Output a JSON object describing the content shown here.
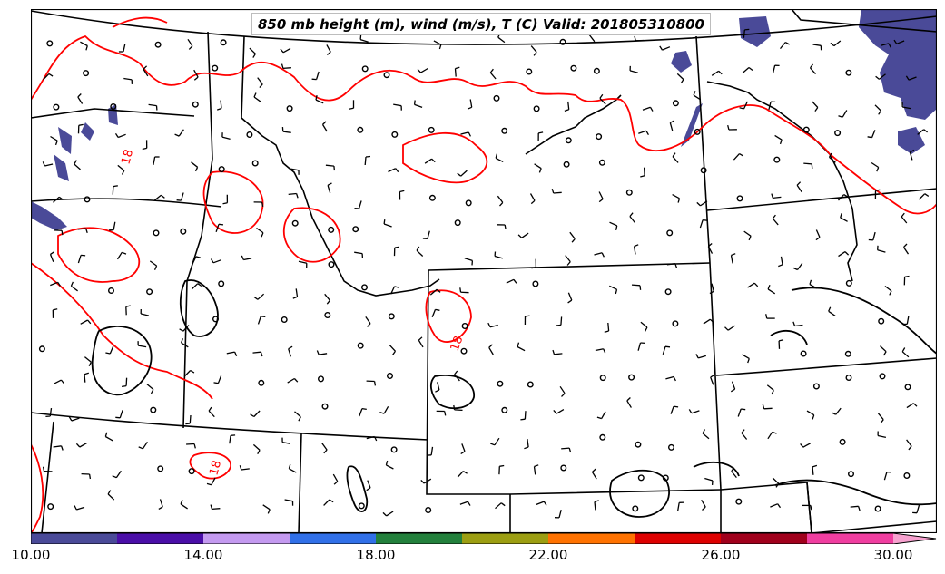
{
  "title": "850 mb height (m), wind (m/s), T (C) Valid: 201805310800",
  "colorbar": {
    "min": 10,
    "max": 30,
    "bin_edges": [
      10,
      12,
      14,
      16,
      18,
      20,
      22,
      24,
      26,
      28,
      30
    ],
    "colors": [
      "#4a4a98",
      "#4a0ea8",
      "#c49af0",
      "#3170e8",
      "#23803c",
      "#9c9e12",
      "#ff7200",
      "#dd0000",
      "#a0001c",
      "#f03ea0"
    ],
    "extend_color": "#f7a1cf",
    "tick_labels": [
      "10.00",
      "14.00",
      "18.00",
      "22.00",
      "26.00",
      "30.00"
    ],
    "tick_values": [
      10,
      14,
      18,
      22,
      26,
      30
    ]
  },
  "contour_labels": [
    {
      "text": "18",
      "color": "#ff0000"
    },
    {
      "text": "18",
      "color": "#ff0000"
    },
    {
      "text": "18",
      "color": "#ff0000"
    }
  ],
  "colors": {
    "temperature_contour": "#ff0000",
    "height_contour": "#000000",
    "boundaries": "#000000",
    "fill_low": "#4a4a98"
  }
}
